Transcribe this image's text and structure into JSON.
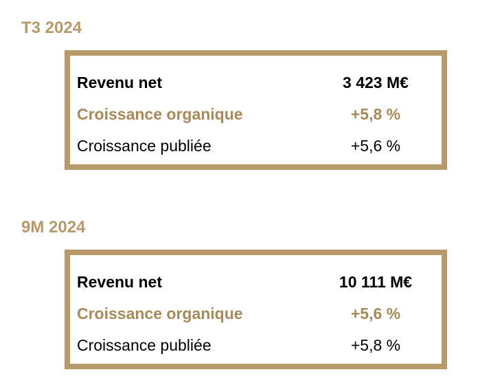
{
  "colors": {
    "accent": "#b89a6a",
    "highlight_text": "#a88a5a",
    "text": "#000000"
  },
  "sections": [
    {
      "title": "T3 2024",
      "rows": [
        {
          "label": "Revenu net",
          "value": "3 423 M€"
        },
        {
          "label": "Croissance organique",
          "value": "+5,8 %"
        },
        {
          "label": "Croissance publiée",
          "value": "+5,6 %"
        }
      ]
    },
    {
      "title": "9M 2024",
      "rows": [
        {
          "label": "Revenu net",
          "value": "10 111 M€"
        },
        {
          "label": "Croissance organique",
          "value": "+5,6 %"
        },
        {
          "label": "Croissance publiée",
          "value": "+5,8 %"
        }
      ]
    }
  ]
}
